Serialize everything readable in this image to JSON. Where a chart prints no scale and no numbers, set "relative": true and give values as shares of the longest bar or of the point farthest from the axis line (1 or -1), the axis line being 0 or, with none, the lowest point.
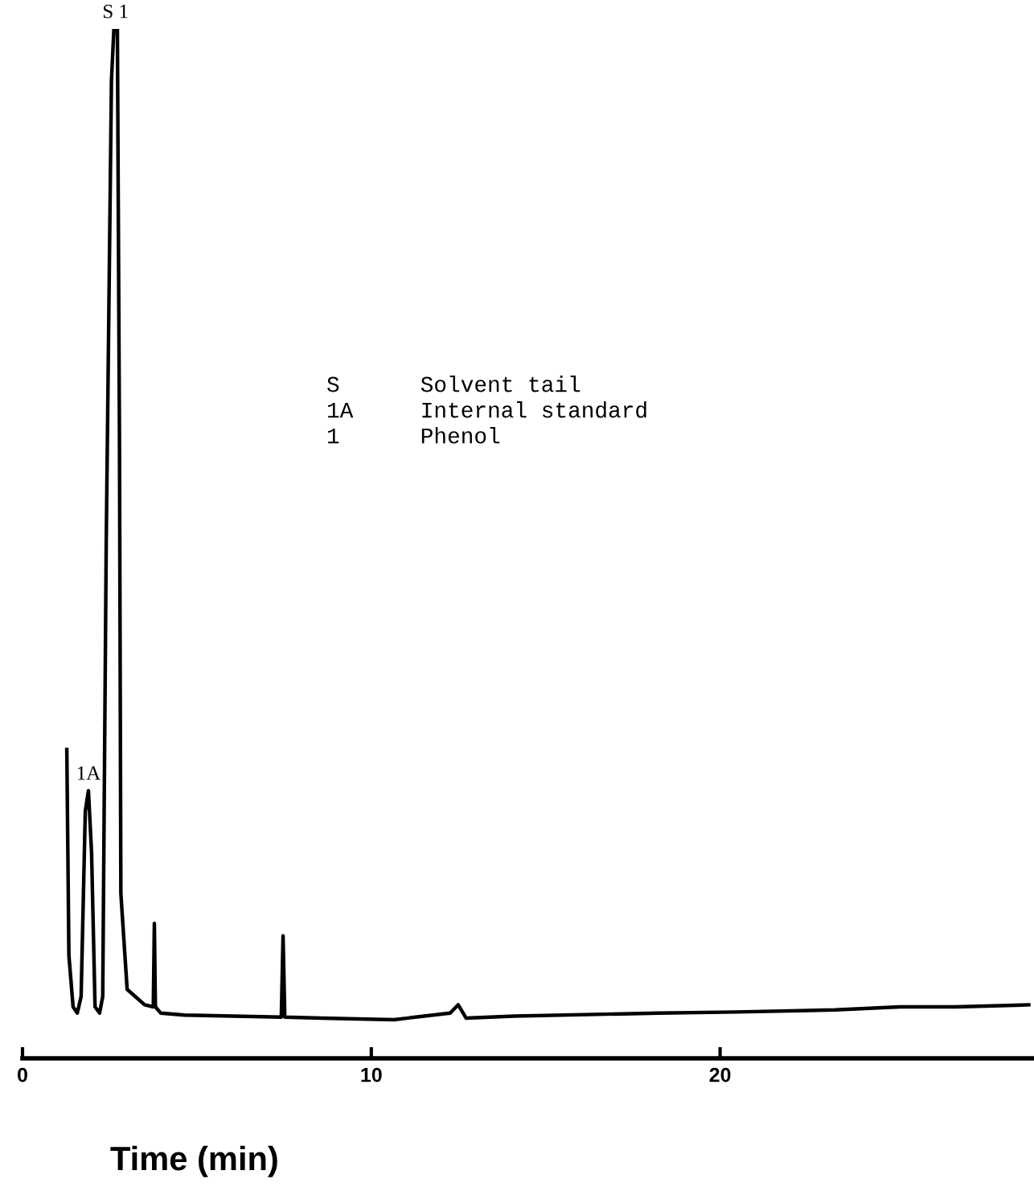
{
  "chart_data": {
    "type": "line",
    "relative": true,
    "xlabel": "Time (min)",
    "xlim": [
      0,
      29
    ],
    "xticks": [
      0,
      10,
      20
    ],
    "grid": false,
    "legend": false,
    "marker": "none",
    "line_style": "solid",
    "series": [
      {
        "color": "#000000",
        "x": [
          1.27,
          1.33,
          1.45,
          1.57,
          1.68,
          1.8,
          1.89,
          1.98,
          2.08,
          2.21,
          2.3,
          2.4,
          2.55,
          2.62,
          2.72,
          2.78,
          2.82,
          3.0,
          3.5,
          3.75,
          3.78,
          3.81,
          3.96,
          4.65,
          7.42,
          7.47,
          7.52,
          8.57,
          10.65,
          12.26,
          12.49,
          12.72,
          14.1,
          18.25,
          20.46,
          23.3,
          25.16,
          26.77,
          28.85
        ],
        "values": [
          0.3,
          0.1,
          0.05,
          0.044,
          0.06,
          0.24,
          0.26,
          0.2,
          0.05,
          0.044,
          0.06,
          0.5,
          0.95,
          1.0,
          1.0,
          0.6,
          0.16,
          0.067,
          0.052,
          0.05,
          0.131,
          0.05,
          0.044,
          0.042,
          0.04,
          0.119,
          0.04,
          0.039,
          0.0375,
          0.044,
          0.052,
          0.039,
          0.041,
          0.044,
          0.045,
          0.047,
          0.05,
          0.05,
          0.052
        ]
      }
    ],
    "annotations": [
      {
        "text": "S",
        "x": 2.45,
        "y": 1.0
      },
      {
        "text": "1",
        "x": 2.9,
        "y": 1.0
      },
      {
        "text": "1A",
        "x": 1.89,
        "y": 0.26
      },
      "S      Solvent tail",
      "1A     Internal standard",
      "1      Phenol"
    ]
  }
}
